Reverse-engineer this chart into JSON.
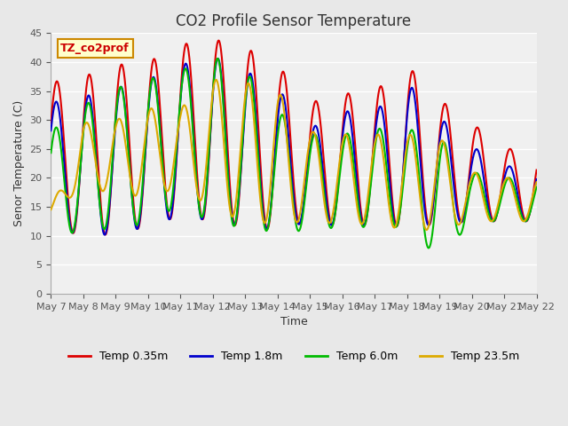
{
  "title": "CO2 Profile Sensor Temperature",
  "xlabel": "Time",
  "ylabel": "Senor Temperature (C)",
  "annotation_text": "TZ_co2prof",
  "annotation_color": "#cc0000",
  "annotation_bg": "#ffffcc",
  "annotation_border": "#cc8800",
  "ylim": [
    0,
    45
  ],
  "yticks": [
    0,
    5,
    10,
    15,
    20,
    25,
    30,
    35,
    40,
    45
  ],
  "xtick_labels": [
    "May 7",
    "May 8",
    "May 9",
    "May 10",
    "May 11",
    "May 12",
    "May 13",
    "May 14",
    "May 15",
    "May 16",
    "May 17",
    "May 18",
    "May 19",
    "May 20",
    "May 21",
    "May 22"
  ],
  "background_color": "#e8e8e8",
  "plot_bg": "#f0f0f0",
  "grid_color": "#ffffff",
  "series": [
    {
      "label": "Temp 0.35m",
      "color": "#dd0000",
      "lw": 1.5
    },
    {
      "label": "Temp 1.8m",
      "color": "#0000cc",
      "lw": 1.5
    },
    {
      "label": "Temp 6.0m",
      "color": "#00bb00",
      "lw": 1.5
    },
    {
      "label": "Temp 23.5m",
      "color": "#ddaa00",
      "lw": 1.5
    }
  ],
  "days": 15,
  "temp_0_35_peaks": [
    36.5,
    37.5,
    39.5,
    40.0,
    43.0,
    44.0,
    42.5,
    39.5,
    33.0,
    34.5,
    35.0,
    39.5,
    33.5,
    29.5,
    25.0
  ],
  "temp_0_35_mins": [
    12.5,
    9.5,
    10.5,
    11.5,
    13.5,
    12.5,
    11.5,
    11.0,
    12.5,
    11.5,
    12.0,
    11.5,
    12.0,
    12.5,
    12.5
  ],
  "temp_1_8_peaks": [
    33.0,
    34.0,
    35.5,
    37.0,
    39.5,
    41.0,
    38.5,
    35.5,
    28.5,
    31.5,
    31.5,
    36.5,
    30.5,
    25.5,
    22.0
  ],
  "temp_1_8_mins": [
    12.5,
    9.5,
    10.5,
    11.5,
    13.5,
    12.5,
    11.5,
    11.0,
    12.5,
    11.5,
    12.0,
    11.5,
    12.0,
    12.5,
    12.5
  ],
  "temp_6_0_peaks": [
    28.0,
    32.5,
    35.5,
    37.0,
    38.5,
    41.0,
    38.5,
    31.5,
    27.5,
    27.5,
    28.5,
    28.5,
    27.0,
    21.0,
    20.0
  ],
  "temp_6_0_mins": [
    10.5,
    10.5,
    11.5,
    12.0,
    15.5,
    12.0,
    11.5,
    10.5,
    11.0,
    11.5,
    11.5,
    11.5,
    6.0,
    12.5,
    12.5
  ],
  "temp_23_5_peaks": [
    14.5,
    29.5,
    30.0,
    32.0,
    32.0,
    37.0,
    36.5,
    35.0,
    28.0,
    27.5,
    27.5,
    27.5,
    27.0,
    21.0,
    20.0
  ],
  "temp_23_5_mins": [
    14.5,
    18.0,
    17.5,
    16.5,
    18.5,
    14.5,
    12.5,
    12.0,
    12.5,
    12.0,
    12.0,
    11.0,
    11.0,
    12.5,
    12.5
  ]
}
